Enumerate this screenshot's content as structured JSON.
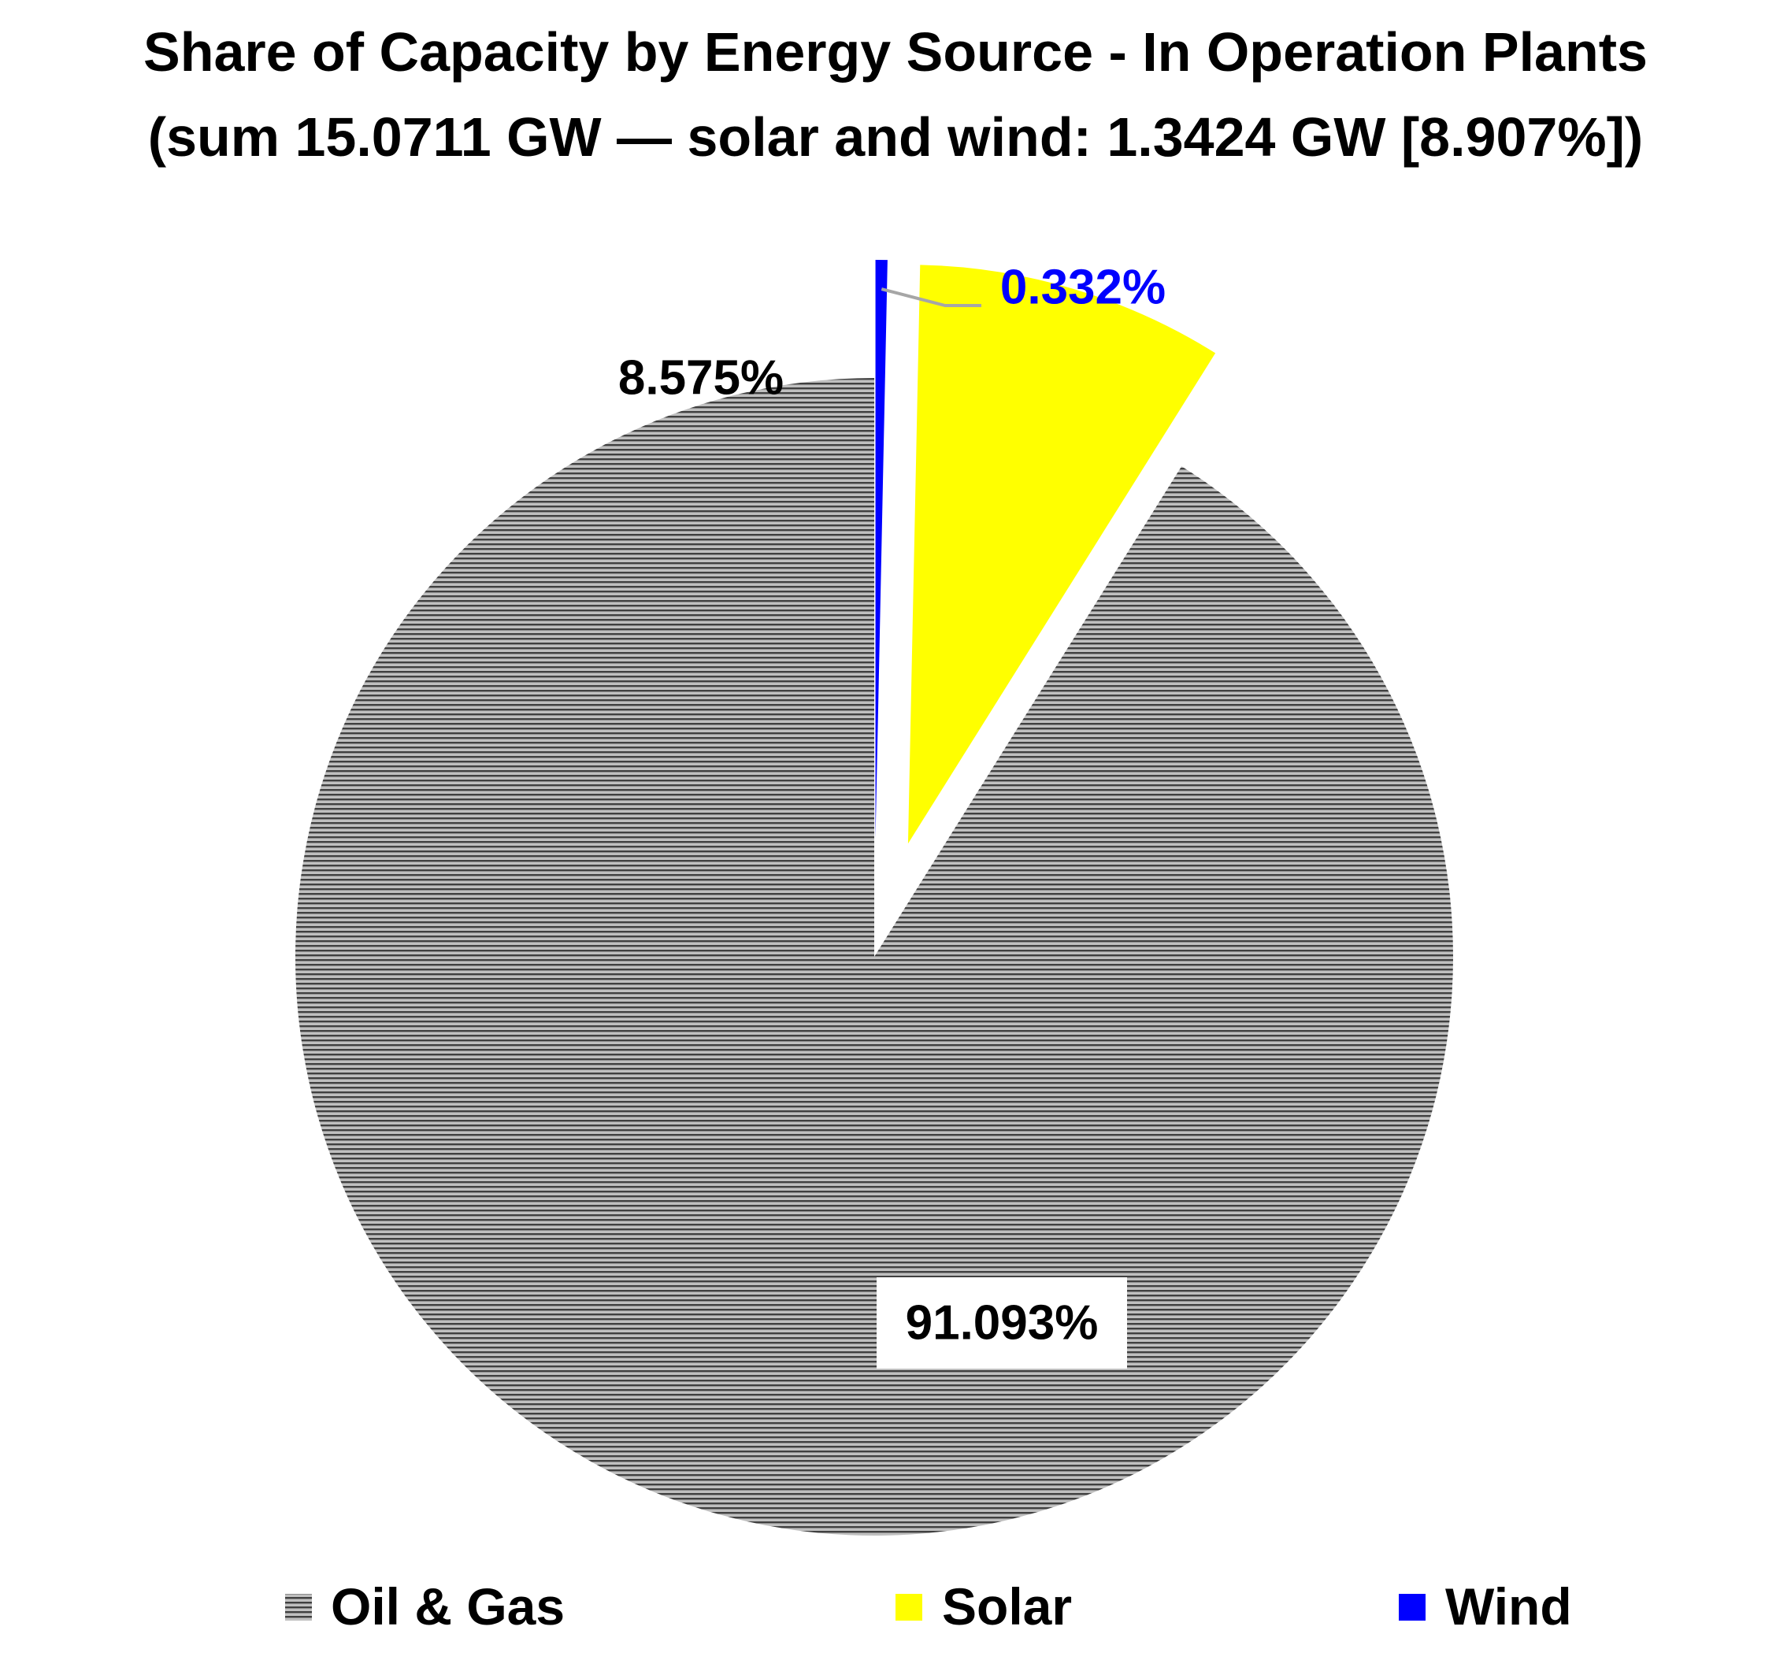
{
  "chart_data": {
    "type": "pie",
    "title": "Share of Capacity by Energy Source - In Operation Plants",
    "subtitle": "(sum 15.0711 GW — solar and wind: 1.3424 GW [8.907%])",
    "start_angle_deg": 0,
    "direction": "counterclockwise",
    "legend_position": "bottom",
    "series": [
      {
        "name": "Oil & Gas",
        "value": 91.093,
        "label": "91.093%",
        "color": "#bfbfbf",
        "stripe_color": "#404040",
        "fill_pattern": "horizontal-stripes",
        "label_color": "#000000",
        "label_background": "#ffffff"
      },
      {
        "name": "Solar",
        "value": 8.575,
        "label": "8.575%",
        "color": "#ffff00",
        "label_color": "#000000"
      },
      {
        "name": "Wind",
        "value": 0.332,
        "label": "0.332%",
        "color": "#0000ff",
        "label_color": "#0000ff"
      }
    ]
  }
}
